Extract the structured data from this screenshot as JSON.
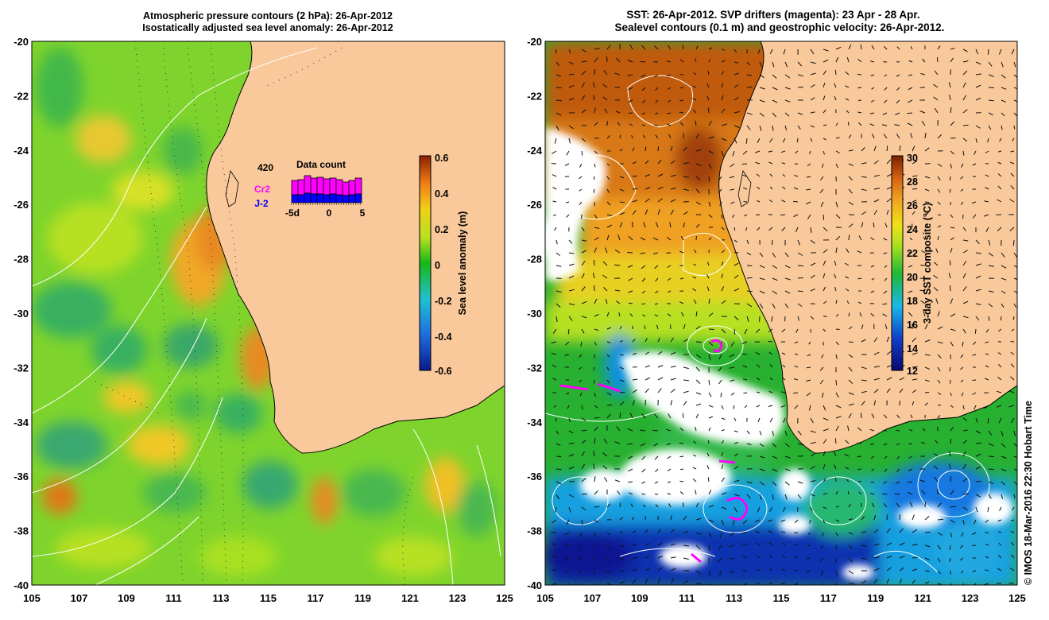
{
  "left_panel": {
    "title_line1": "Atmospheric pressure contours (2 hPa): 26-Apr-2012",
    "title_line2": "Isostatically adjusted sea level anomaly: 26-Apr-2012",
    "colorbar_label": "Sea level anomaly (m)",
    "colorbar_ticks": [
      "0.6",
      "0.4",
      "0.2",
      "0",
      "-0.2",
      "-0.4",
      "-0.6"
    ],
    "inset": {
      "max_label": "420",
      "title": "Data count",
      "series_cr2": "Cr2",
      "series_j2": "J-2",
      "x_ticks": [
        "-5d",
        "0",
        "5"
      ]
    }
  },
  "right_panel": {
    "title_line1": "SST: 26-Apr-2012. SVP drifters (magenta): 23 Apr - 28 Apr.",
    "title_line2": "Sealevel contours (0.1 m) and geostrophic velocity: 26-Apr-2012.",
    "colorbar_label": "3-day SST composite (°C)",
    "colorbar_ticks": [
      "30",
      "28",
      "26",
      "24",
      "22",
      "20",
      "18",
      "16",
      "14",
      "12"
    ]
  },
  "lat_ticks": [
    "-20",
    "-22",
    "-24",
    "-26",
    "-28",
    "-30",
    "-32",
    "-34",
    "-36",
    "-38",
    "-40"
  ],
  "lon_ticks": [
    "105",
    "107",
    "109",
    "111",
    "113",
    "115",
    "117",
    "119",
    "121",
    "123",
    "125"
  ],
  "credit": "© IMOS 18-Mar-2016 22:30 Hobart Time",
  "chart_data": {
    "type": "heatmap",
    "maps": [
      {
        "title": "Atmospheric pressure contours (2 hPa): 26-Apr-2012 / Isostatically adjusted sea level anomaly: 26-Apr-2012",
        "variable": "Sea level anomaly (m)",
        "color_range": [
          -0.6,
          0.6
        ],
        "lon_range": [
          105,
          125
        ],
        "lat_range": [
          -40,
          -20
        ],
        "inset_data_count": {
          "max": 420,
          "series": [
            "Cr2",
            "J-2"
          ],
          "x_range_days": [
            -5,
            5
          ]
        }
      },
      {
        "title": "SST: 26-Apr-2012. SVP drifters (magenta): 23 Apr - 28 Apr. Sealevel contours (0.1 m) and geostrophic velocity: 26-Apr-2012.",
        "variable": "3-day SST composite (°C)",
        "color_range": [
          12,
          30
        ],
        "lon_range": [
          105,
          125
        ],
        "lat_range": [
          -40,
          -20
        ]
      }
    ]
  },
  "colors": {
    "land": "#f9c99b",
    "coast_line": "#000000",
    "contour": "#ffffff",
    "drifter": "#ff00ff"
  }
}
